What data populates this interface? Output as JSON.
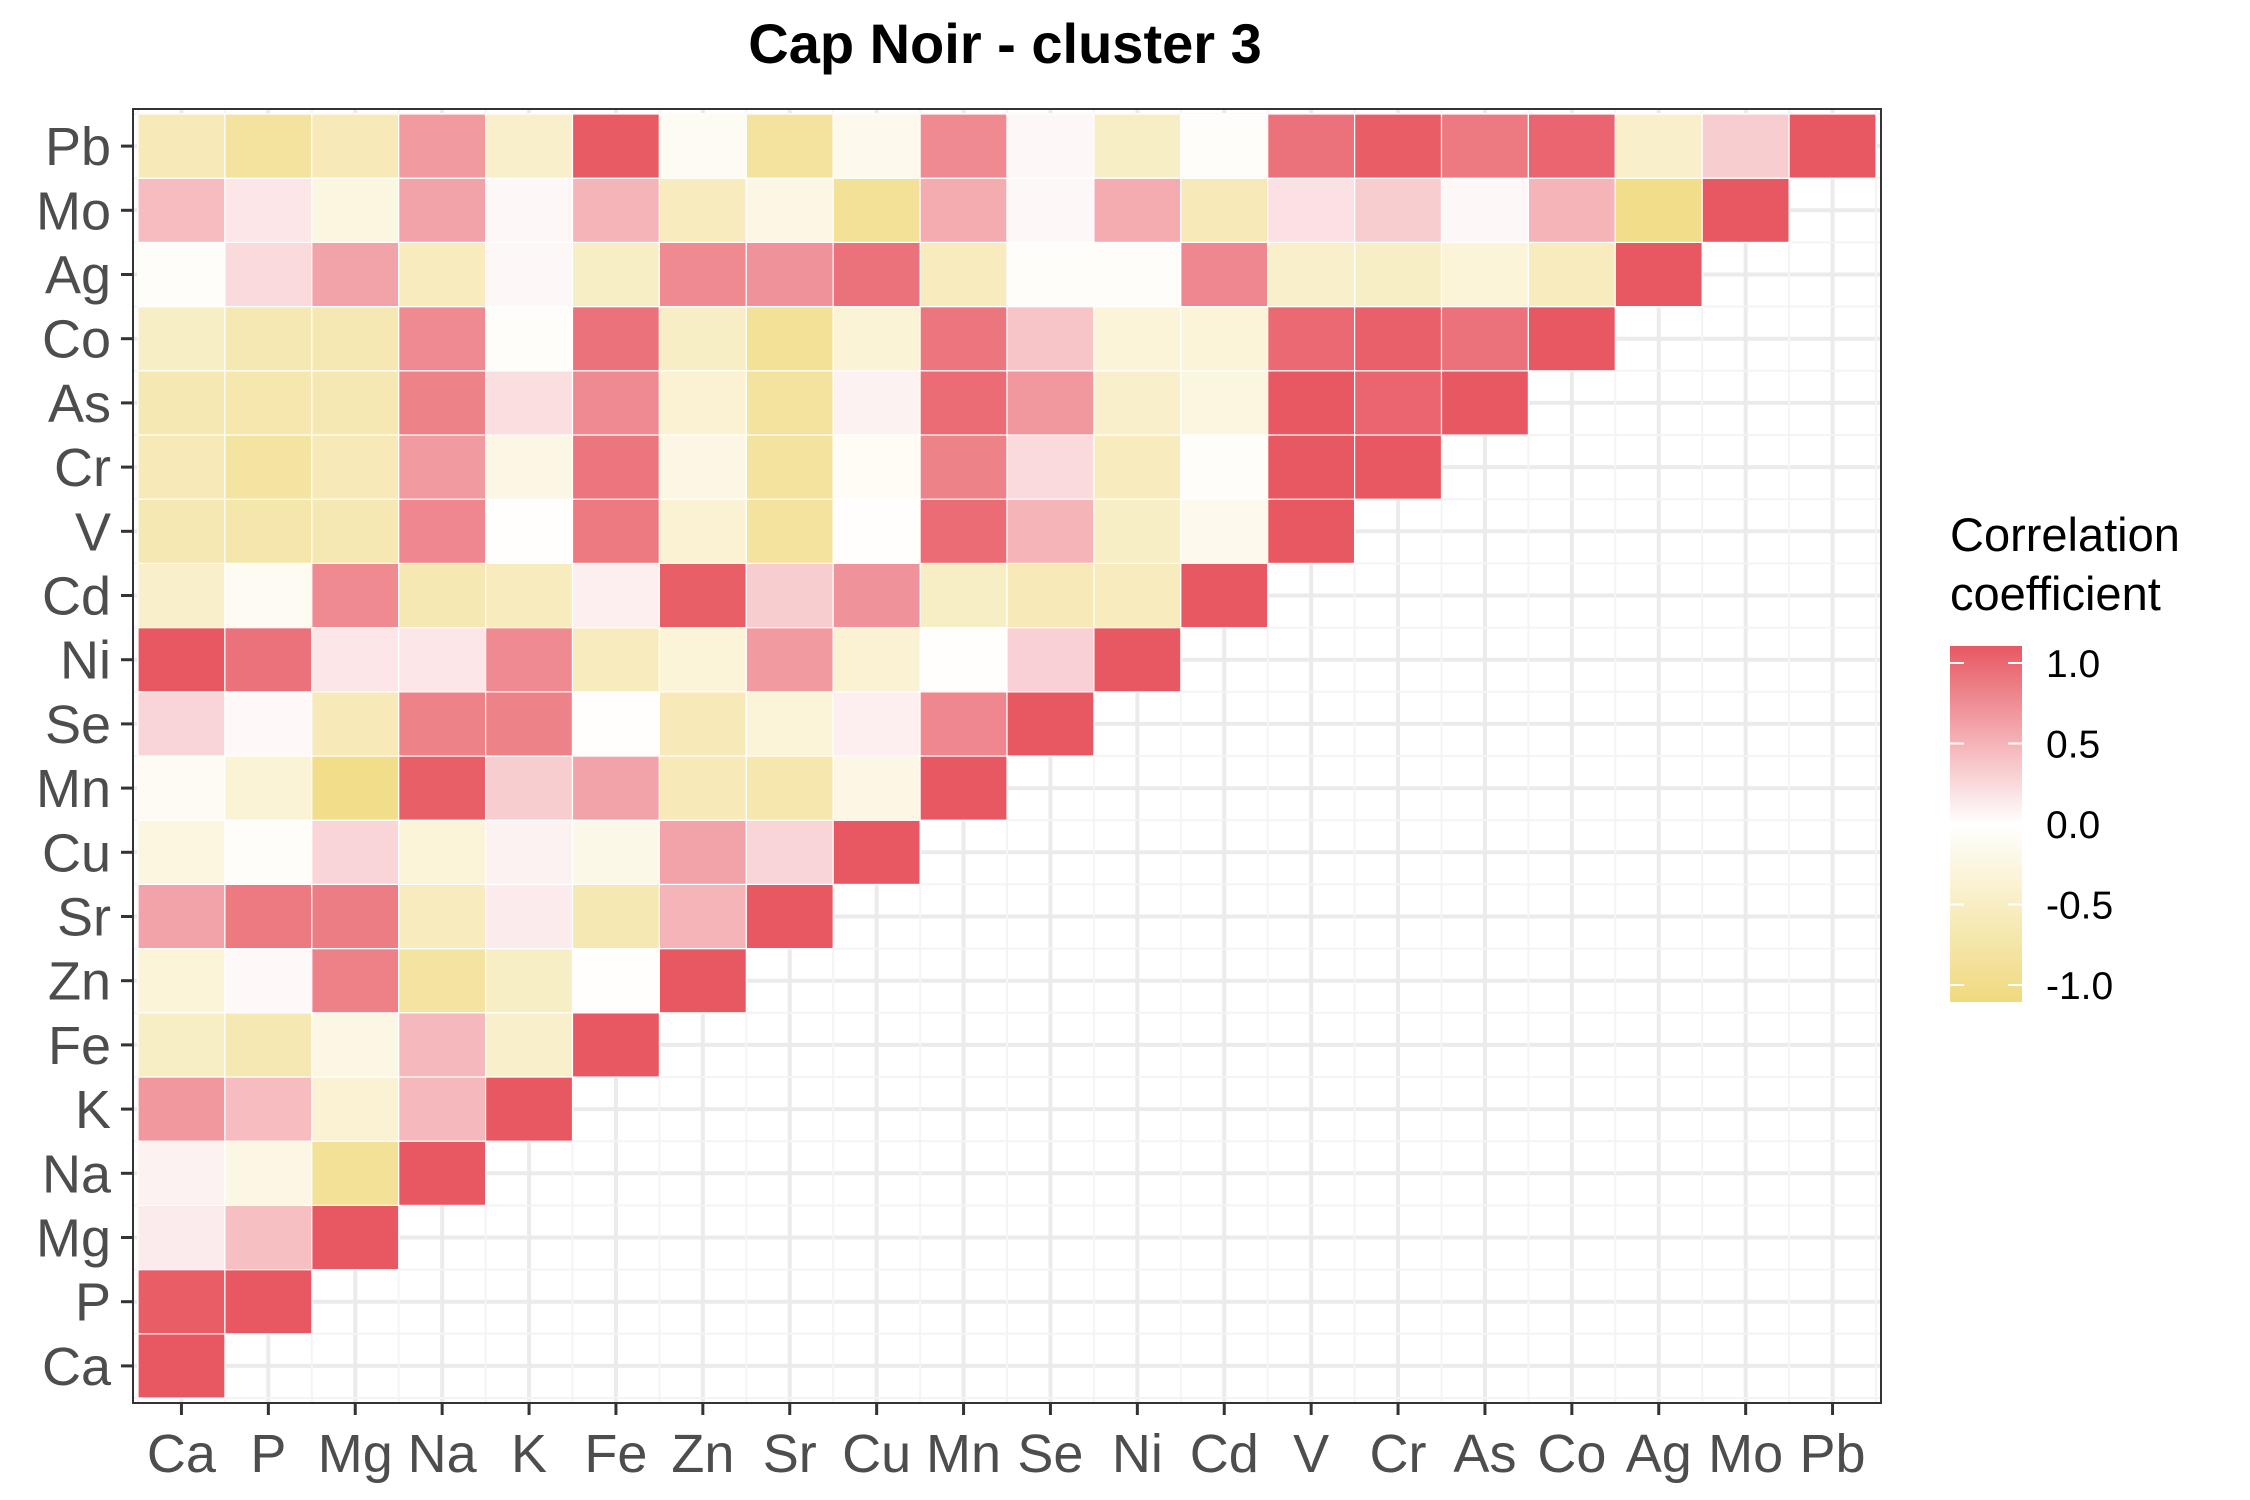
{
  "chart_data": {
    "type": "heatmap",
    "title": "Cap Noir - cluster 3",
    "variables": [
      "Ca",
      "P",
      "Mg",
      "Na",
      "K",
      "Fe",
      "Zn",
      "Sr",
      "Cu",
      "Mn",
      "Se",
      "Ni",
      "Cd",
      "V",
      "Cr",
      "As",
      "Co",
      "Ag",
      "Mo",
      "Pb"
    ],
    "lower_triangle_matrix": [
      [
        1.0
      ],
      [
        0.97,
        1.0
      ],
      [
        0.12,
        0.38,
        1.0
      ],
      [
        0.08,
        -0.2,
        -0.8,
        1.0
      ],
      [
        0.62,
        0.4,
        -0.35,
        0.42,
        1.0
      ],
      [
        -0.45,
        -0.6,
        -0.2,
        0.42,
        -0.4,
        1.0
      ],
      [
        -0.3,
        0.04,
        0.76,
        -0.72,
        -0.45,
        -0.02,
        1.0
      ],
      [
        0.55,
        0.8,
        0.78,
        -0.5,
        0.12,
        -0.6,
        0.45,
        1.0
      ],
      [
        -0.25,
        -0.05,
        0.25,
        -0.3,
        0.08,
        -0.18,
        0.55,
        0.25,
        1.0
      ],
      [
        -0.1,
        -0.32,
        -0.9,
        0.96,
        0.3,
        0.55,
        -0.55,
        -0.62,
        -0.2,
        1.0
      ],
      [
        0.25,
        0.04,
        -0.55,
        0.75,
        0.75,
        -0.02,
        -0.55,
        -0.3,
        0.1,
        0.72,
        1.0
      ],
      [
        1.0,
        0.85,
        0.15,
        0.15,
        0.7,
        -0.5,
        -0.3,
        0.6,
        -0.35,
        -0.02,
        0.28,
        1.0
      ],
      [
        -0.4,
        -0.1,
        0.7,
        -0.6,
        -0.5,
        0.1,
        0.96,
        0.3,
        0.65,
        -0.45,
        -0.55,
        -0.5,
        1.0
      ],
      [
        -0.6,
        -0.65,
        -0.6,
        0.72,
        -0.02,
        0.8,
        -0.35,
        -0.75,
        -0.02,
        0.88,
        0.45,
        -0.45,
        -0.15,
        1.0
      ],
      [
        -0.55,
        -0.72,
        -0.55,
        0.6,
        -0.2,
        0.82,
        -0.2,
        -0.75,
        -0.08,
        0.75,
        0.22,
        -0.5,
        -0.05,
        1.0,
        1.0
      ],
      [
        -0.6,
        -0.62,
        -0.6,
        0.75,
        0.2,
        0.7,
        -0.35,
        -0.75,
        0.08,
        0.88,
        0.62,
        -0.4,
        -0.25,
        1.0,
        0.92,
        1.0
      ],
      [
        -0.45,
        -0.6,
        -0.6,
        0.7,
        -0.05,
        0.85,
        -0.45,
        -0.8,
        -0.32,
        0.82,
        0.35,
        -0.3,
        -0.3,
        0.9,
        0.95,
        0.85,
        1.0
      ],
      [
        -0.05,
        0.22,
        0.55,
        -0.5,
        0.05,
        -0.45,
        0.7,
        0.65,
        0.85,
        -0.5,
        -0.05,
        -0.05,
        0.72,
        -0.4,
        -0.45,
        -0.3,
        -0.5,
        1.0
      ],
      [
        0.4,
        0.15,
        -0.25,
        0.55,
        0.05,
        0.45,
        -0.5,
        -0.2,
        -0.8,
        0.5,
        0.05,
        0.5,
        -0.55,
        0.18,
        0.3,
        0.05,
        0.45,
        -0.9,
        1.0
      ],
      [
        -0.55,
        -0.75,
        -0.55,
        0.6,
        -0.4,
        0.98,
        -0.1,
        -0.75,
        -0.15,
        0.7,
        0.05,
        -0.45,
        -0.05,
        0.85,
        0.97,
        0.8,
        0.92,
        -0.4,
        0.3,
        1.0
      ]
    ],
    "legend": {
      "title_lines": [
        "Correlation",
        "coefficient"
      ],
      "ticks": [
        1.0,
        0.5,
        0.0,
        -0.5,
        -1.0
      ],
      "tick_labels": [
        "1.0",
        "0.5",
        "0.0",
        "-0.5",
        "-1.0"
      ],
      "placement": "right"
    },
    "colors": {
      "high": "#E85862",
      "mid": "#FFFFFF",
      "low": "#F0D97E"
    },
    "value_range": [
      -1,
      1
    ],
    "grid": true
  }
}
